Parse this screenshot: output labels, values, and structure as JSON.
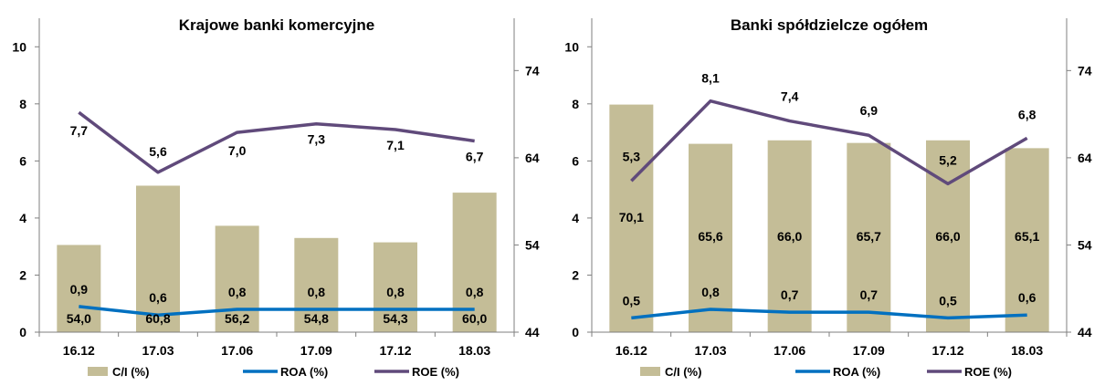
{
  "colors": {
    "bar": "#c4bd97",
    "roa": "#0070c0",
    "roe": "#604a7b",
    "axis": "#7f7f7f",
    "text": "#000000"
  },
  "chart_data": [
    {
      "type": "bar+line",
      "title": "Krajowe banki komercyjne",
      "categories": [
        "16.12",
        "17.03",
        "17.06",
        "17.09",
        "17.12",
        "18.03"
      ],
      "left_axis": {
        "ylim": [
          0,
          11
        ],
        "ticks": [
          "0",
          "2",
          "4",
          "6",
          "8",
          "10"
        ]
      },
      "right_axis": {
        "ylim": [
          44,
          80
        ],
        "ticks": [
          "44",
          "54",
          "64",
          "74"
        ]
      },
      "series": [
        {
          "name": "C/I (%)",
          "type": "bar",
          "axis": "right",
          "values": [
            54.0,
            60.8,
            56.2,
            54.8,
            54.3,
            60.0
          ],
          "labels": [
            "54,0",
            "60,8",
            "56,2",
            "54,8",
            "54,3",
            "60,0"
          ]
        },
        {
          "name": "ROA (%)",
          "type": "line",
          "axis": "left",
          "values": [
            0.9,
            0.6,
            0.8,
            0.8,
            0.8,
            0.8
          ],
          "labels": [
            "0,9",
            "0,6",
            "0,8",
            "0,8",
            "0,8",
            "0,8"
          ]
        },
        {
          "name": "ROE (%)",
          "type": "line",
          "axis": "left",
          "values": [
            7.7,
            5.6,
            7.0,
            7.3,
            7.1,
            6.7
          ],
          "labels": [
            "7,7",
            "5,6",
            "7,0",
            "7,3",
            "7,1",
            "6,7"
          ]
        }
      ],
      "legend": [
        "C/I (%)",
        "ROA (%)",
        "ROE (%)"
      ],
      "legend_position": "bottom"
    },
    {
      "type": "bar+line",
      "title": "Banki spółdzielcze ogółem",
      "categories": [
        "16.12",
        "17.03",
        "17.06",
        "17.09",
        "17.12",
        "18.03"
      ],
      "left_axis": {
        "ylim": [
          0,
          11
        ],
        "ticks": [
          "0",
          "2",
          "4",
          "6",
          "8",
          "10"
        ]
      },
      "right_axis": {
        "ylim": [
          44,
          80
        ],
        "ticks": [
          "44",
          "54",
          "64",
          "74"
        ]
      },
      "series": [
        {
          "name": "C/I (%)",
          "type": "bar",
          "axis": "right",
          "values": [
            70.1,
            65.6,
            66.0,
            65.7,
            66.0,
            65.1
          ],
          "labels": [
            "70,1",
            "65,6",
            "66,0",
            "65,7",
            "66,0",
            "65,1"
          ]
        },
        {
          "name": "ROA (%)",
          "type": "line",
          "axis": "left",
          "values": [
            0.5,
            0.8,
            0.7,
            0.7,
            0.5,
            0.6
          ],
          "labels": [
            "0,5",
            "0,8",
            "0,7",
            "0,7",
            "0,5",
            "0,6"
          ]
        },
        {
          "name": "ROE (%)",
          "type": "line",
          "axis": "left",
          "values": [
            5.3,
            8.1,
            7.4,
            6.9,
            5.2,
            6.8
          ],
          "labels": [
            "5,3",
            "8,1",
            "7,4",
            "6,9",
            "5,2",
            "6,8"
          ]
        }
      ],
      "legend": [
        "C/I (%)",
        "ROA (%)",
        "ROE (%)"
      ],
      "legend_position": "bottom"
    }
  ]
}
